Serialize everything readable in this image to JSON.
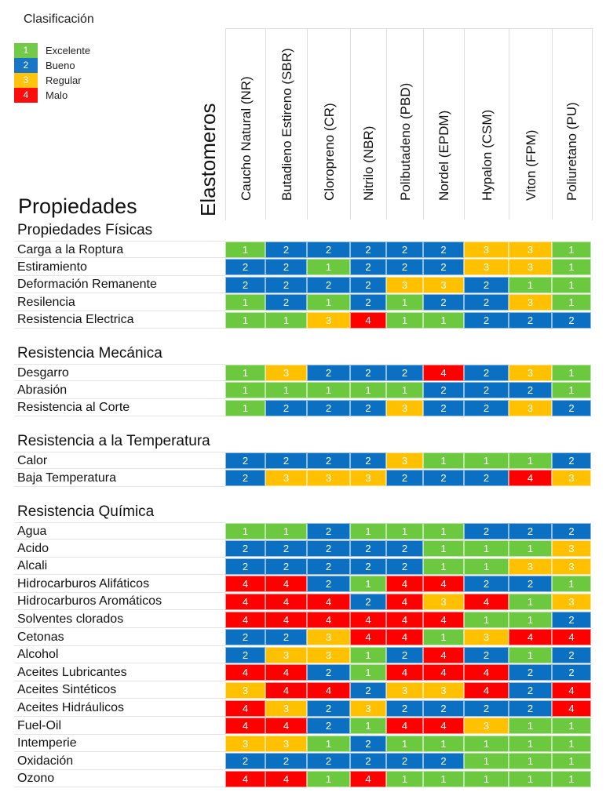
{
  "legend": {
    "title": "Clasificación",
    "items": [
      {
        "value": "1",
        "label": "Excelente",
        "color": "#6cc83f"
      },
      {
        "value": "2",
        "label": "Bueno",
        "color": "#0b6fc2"
      },
      {
        "value": "3",
        "label": "Regular",
        "color": "#ffc000"
      },
      {
        "value": "4",
        "label": "Malo",
        "color": "#ff0000"
      }
    ]
  },
  "header": {
    "properties_title": "Propiedades",
    "elastomers_title": "Elastomeros"
  },
  "chart_data": {
    "type": "heatmap",
    "title": "Clasificación",
    "xlabel": "Elastomeros",
    "ylabel": "Propiedades",
    "scale": {
      "1": "Excelente",
      "2": "Bueno",
      "3": "Regular",
      "4": "Malo"
    },
    "columns": [
      "Caucho Natural (NR)",
      "Butadieno Estireno (SBR)",
      "Cloropreno (CR)",
      "Nitrilo (NBR)",
      "Polibutadeno (PBD)",
      "Nordel (EPDM)",
      "Hypalon (CSM)",
      "Viton (FPM)",
      "Poliuretano (PU)"
    ],
    "sections": [
      {
        "title": "Propiedades Físicas",
        "rows": [
          {
            "label": "Carga a la Roptura",
            "values": [
              1,
              2,
              2,
              2,
              2,
              2,
              3,
              3,
              1
            ]
          },
          {
            "label": "Estiramiento",
            "values": [
              2,
              2,
              1,
              2,
              2,
              2,
              3,
              3,
              1
            ]
          },
          {
            "label": "Deformación Remanente",
            "values": [
              2,
              2,
              2,
              2,
              3,
              3,
              2,
              1,
              1
            ]
          },
          {
            "label": "Resilencia",
            "values": [
              1,
              2,
              1,
              2,
              1,
              2,
              2,
              3,
              1
            ]
          },
          {
            "label": "Resistencia Electrica",
            "values": [
              1,
              1,
              3,
              4,
              1,
              1,
              2,
              2,
              2
            ]
          }
        ]
      },
      {
        "title": "Resistencia Mecánica",
        "rows": [
          {
            "label": "Desgarro",
            "values": [
              1,
              3,
              2,
              2,
              2,
              4,
              2,
              3,
              1
            ]
          },
          {
            "label": "Abrasión",
            "values": [
              1,
              1,
              1,
              1,
              1,
              2,
              2,
              2,
              1
            ]
          },
          {
            "label": "Resistencia al Corte",
            "values": [
              1,
              2,
              2,
              2,
              3,
              2,
              2,
              3,
              2
            ]
          }
        ]
      },
      {
        "title": "Resistencia a la Temperatura",
        "rows": [
          {
            "label": "Calor",
            "values": [
              2,
              2,
              2,
              2,
              3,
              1,
              1,
              1,
              2
            ]
          },
          {
            "label": "Baja Temperatura",
            "values": [
              2,
              3,
              3,
              3,
              2,
              2,
              2,
              4,
              3
            ]
          }
        ]
      },
      {
        "title": "Resistencia Química",
        "rows": [
          {
            "label": "Agua",
            "values": [
              1,
              1,
              2,
              1,
              1,
              1,
              2,
              2,
              2
            ]
          },
          {
            "label": "Acido",
            "values": [
              2,
              2,
              2,
              2,
              2,
              1,
              1,
              1,
              3
            ]
          },
          {
            "label": "Alcali",
            "values": [
              2,
              2,
              2,
              2,
              2,
              1,
              1,
              3,
              3
            ]
          },
          {
            "label": "Hidrocarburos Alifáticos",
            "values": [
              4,
              4,
              2,
              1,
              4,
              4,
              2,
              2,
              1
            ]
          },
          {
            "label": "Hidrocarburos Aromáticos",
            "values": [
              4,
              4,
              4,
              2,
              4,
              3,
              4,
              1,
              3
            ]
          },
          {
            "label": "Solventes clorados",
            "values": [
              4,
              4,
              4,
              4,
              4,
              4,
              1,
              1,
              2
            ]
          },
          {
            "label": "Cetonas",
            "values": [
              2,
              2,
              3,
              4,
              4,
              1,
              3,
              4,
              4
            ]
          },
          {
            "label": "Alcohol",
            "values": [
              2,
              3,
              3,
              1,
              2,
              4,
              2,
              1,
              2
            ]
          },
          {
            "label": "Aceites Lubricantes",
            "values": [
              4,
              4,
              2,
              1,
              4,
              4,
              4,
              2,
              2
            ]
          },
          {
            "label": "Aceites Sintéticos",
            "values": [
              3,
              4,
              4,
              2,
              3,
              3,
              4,
              2,
              4
            ]
          },
          {
            "label": "Aceites Hidráulicos",
            "values": [
              4,
              3,
              2,
              3,
              2,
              2,
              2,
              2,
              4
            ]
          },
          {
            "label": "Fuel-Oil",
            "values": [
              4,
              4,
              2,
              1,
              4,
              4,
              3,
              1,
              1
            ]
          },
          {
            "label": "Intemperie",
            "values": [
              3,
              3,
              1,
              2,
              1,
              1,
              1,
              1,
              1
            ]
          },
          {
            "label": "Oxidación",
            "values": [
              2,
              2,
              2,
              2,
              2,
              2,
              1,
              1,
              1
            ]
          },
          {
            "label": "Ozono",
            "values": [
              4,
              4,
              1,
              4,
              1,
              1,
              1,
              1,
              1
            ]
          }
        ]
      }
    ]
  }
}
